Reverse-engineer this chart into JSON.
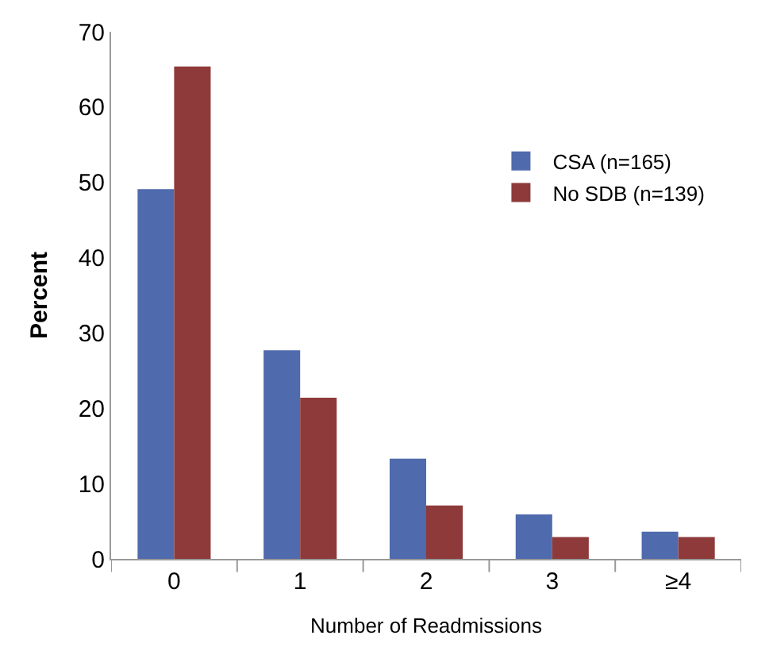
{
  "chart_data": {
    "type": "bar",
    "xlabel": "Number of Readmissions",
    "ylabel": "Percent",
    "categories": [
      "0",
      "1",
      "2",
      "3",
      "≥4"
    ],
    "series": [
      {
        "name": "CSA (n=165)",
        "color": "#4f6aad",
        "values": [
          49.1,
          27.7,
          13.3,
          5.9,
          3.6
        ]
      },
      {
        "name": "No SDB (n=139)",
        "color": "#8e3a3a",
        "values": [
          65.4,
          21.4,
          7.1,
          2.9,
          2.9
        ]
      }
    ],
    "ylim": [
      0,
      70
    ],
    "yticks": [
      0,
      10,
      20,
      30,
      40,
      50,
      60,
      70
    ],
    "legend": "top right"
  }
}
